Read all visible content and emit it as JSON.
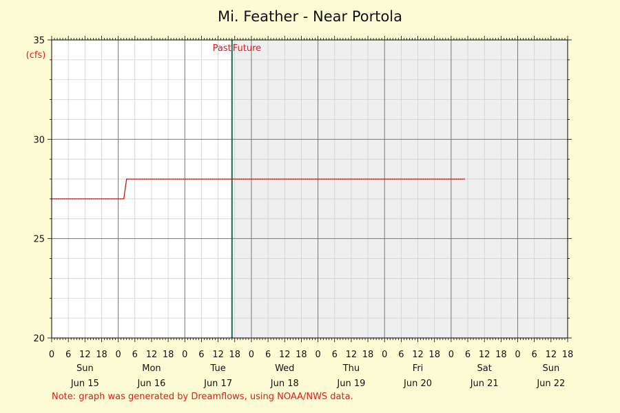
{
  "chart_data": {
    "type": "line",
    "title": "Mi. Feather - Near Portola",
    "ylabel": "(cfs)",
    "ylim": [
      20,
      35
    ],
    "y_ticks": [
      "20",
      "25",
      "30",
      "35"
    ],
    "x_range_hours": [
      0,
      186
    ],
    "hour_tick_labels": [
      "0",
      "6",
      "12",
      "18"
    ],
    "days": [
      {
        "weekday": "Sun",
        "date": "Jun 15"
      },
      {
        "weekday": "Mon",
        "date": "Jun 16"
      },
      {
        "weekday": "Tue",
        "date": "Jun 17"
      },
      {
        "weekday": "Wed",
        "date": "Jun 18"
      },
      {
        "weekday": "Thu",
        "date": "Jun 19"
      },
      {
        "weekday": "Fri",
        "date": "Jun 20"
      },
      {
        "weekday": "Sat",
        "date": "Jun 21"
      },
      {
        "weekday": "Sun",
        "date": "Jun 22"
      }
    ],
    "now_marker": {
      "past_label": "Past",
      "future_label": "Future",
      "hour": 65
    },
    "grid": true,
    "series": [
      {
        "color": "#e31a1a",
        "points": [
          [
            0,
            27
          ],
          [
            26,
            27
          ],
          [
            27,
            28
          ],
          [
            149,
            28
          ]
        ]
      }
    ],
    "note": "Note: graph was generated by Dreamflows, using NOAA/NWS data."
  }
}
